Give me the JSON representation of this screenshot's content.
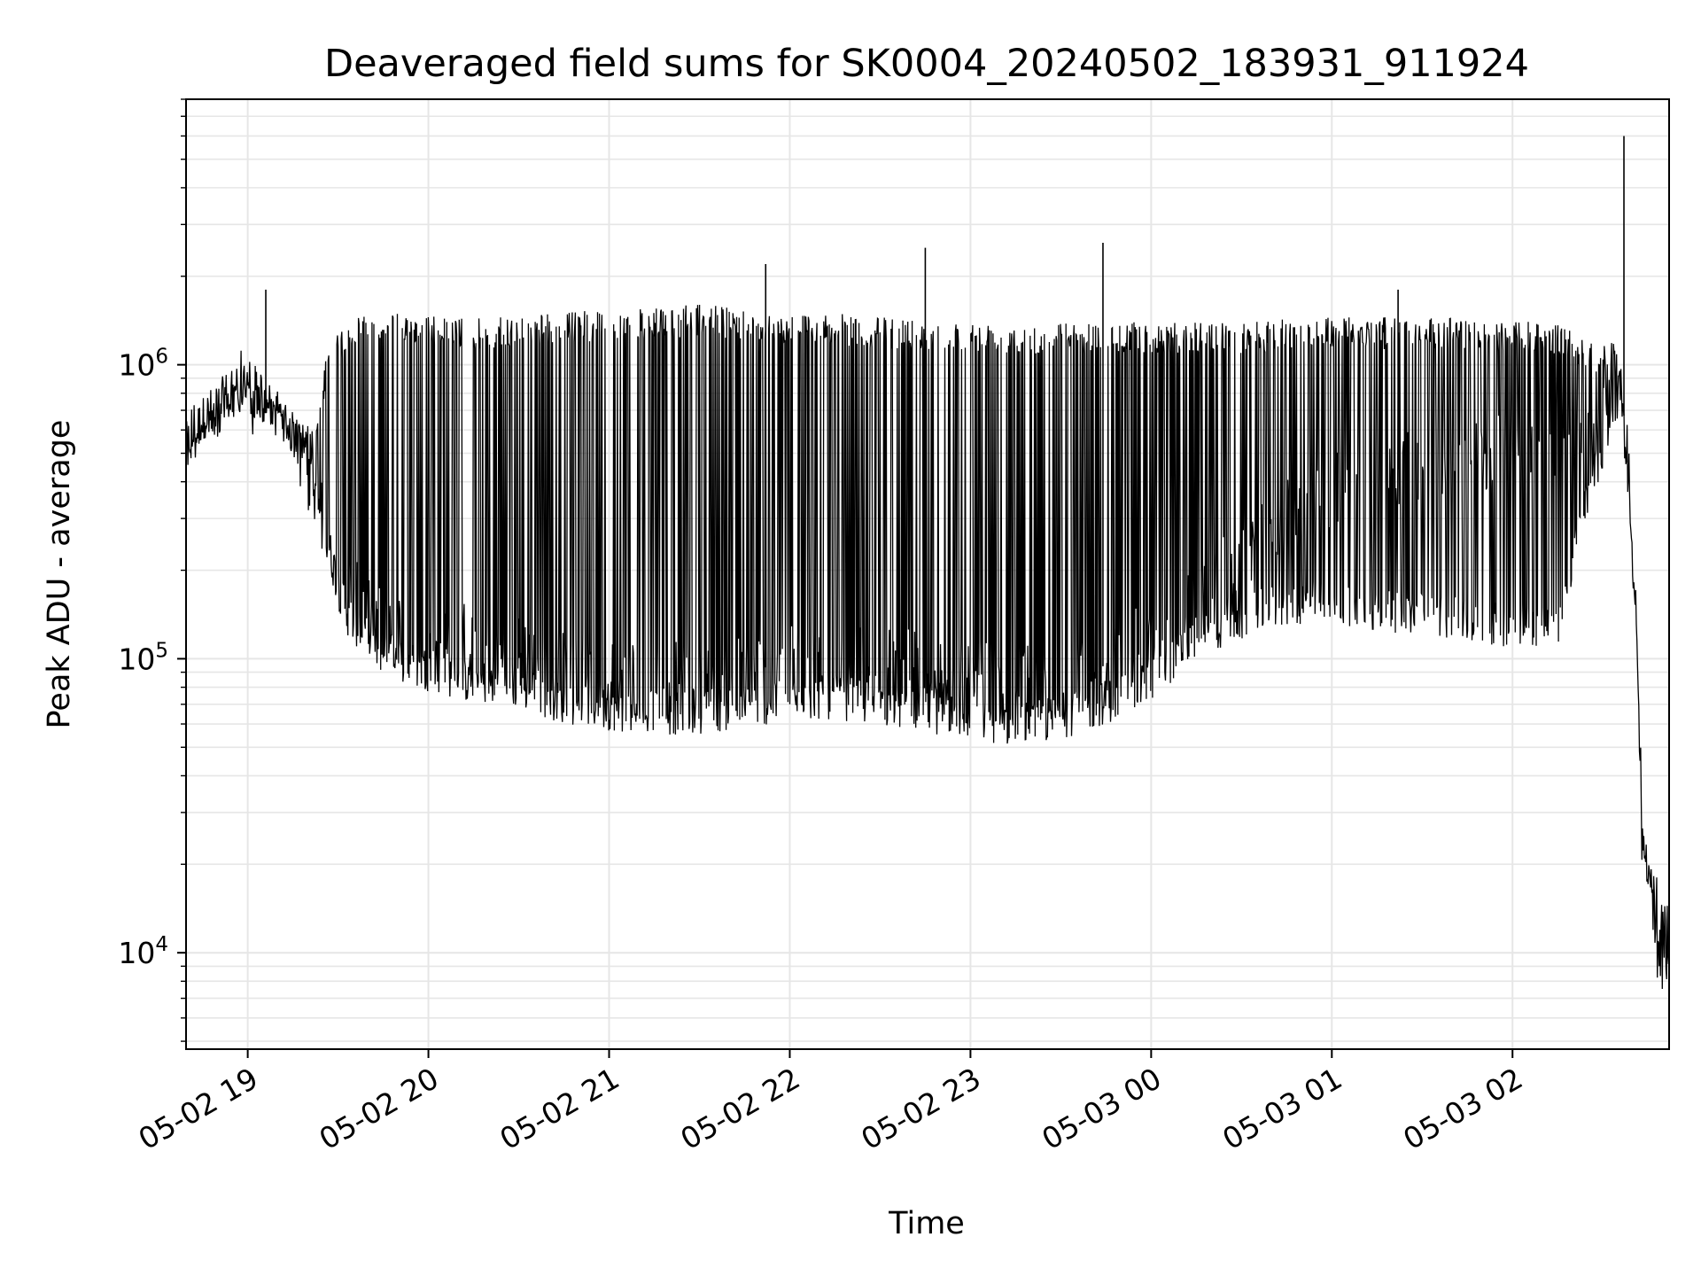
{
  "chart_data": {
    "type": "line",
    "title": "Deaveraged field sums for SK0004_20240502_183931_911924",
    "xlabel": "Time",
    "ylabel": "Peak ADU - average",
    "yscale": "log",
    "ylim": [
      4700,
      8000000
    ],
    "xlim": [
      "2024-05-02 18:39:31",
      "2024-05-03 02:52:00"
    ],
    "grid": true,
    "line_color": "#000000",
    "grid_color": "#e6e6e6",
    "x_ticks": [
      {
        "t": "2024-05-02 19:00",
        "label": "05-02 19"
      },
      {
        "t": "2024-05-02 20:00",
        "label": "05-02 20"
      },
      {
        "t": "2024-05-02 21:00",
        "label": "05-02 21"
      },
      {
        "t": "2024-05-02 22:00",
        "label": "05-02 22"
      },
      {
        "t": "2024-05-02 23:00",
        "label": "05-02 23"
      },
      {
        "t": "2024-05-03 00:00",
        "label": "05-03 00"
      },
      {
        "t": "2024-05-03 01:00",
        "label": "05-03 01"
      },
      {
        "t": "2024-05-03 02:00",
        "label": "05-03 02"
      }
    ],
    "y_ticks": [
      {
        "value": 10000,
        "base": "10",
        "exp": "4"
      },
      {
        "value": 100000,
        "base": "10",
        "exp": "5"
      },
      {
        "value": 1000000,
        "base": "10",
        "exp": "6"
      }
    ],
    "series": [
      {
        "x": [
          "2024-05-02 18:39:31",
          "2024-05-02 18:45",
          "2024-05-02 18:52",
          "2024-05-02 18:58",
          "2024-05-02 19:05",
          "2024-05-02 19:12",
          "2024-05-02 19:18",
          "2024-05-02 19:22",
          "2024-05-02 19:27",
          "2024-05-02 19:30",
          "2024-05-02 19:33",
          "2024-05-02 19:36",
          "2024-05-02 19:40",
          "2024-05-02 19:48",
          "2024-05-02 19:55",
          "2024-05-02 20:05",
          "2024-05-02 20:15",
          "2024-05-02 20:25",
          "2024-05-02 20:35",
          "2024-05-02 20:45",
          "2024-05-02 20:55",
          "2024-05-02 21:05",
          "2024-05-02 21:15",
          "2024-05-02 21:25",
          "2024-05-02 21:35",
          "2024-05-02 21:45",
          "2024-05-02 21:55",
          "2024-05-02 22:05",
          "2024-05-02 22:15",
          "2024-05-02 22:25",
          "2024-05-02 22:35",
          "2024-05-02 22:45",
          "2024-05-02 22:55",
          "2024-05-02 23:05",
          "2024-05-02 23:15",
          "2024-05-02 23:25",
          "2024-05-02 23:35",
          "2024-05-02 23:45",
          "2024-05-02 23:55",
          "2024-05-03 00:05",
          "2024-05-03 00:15",
          "2024-05-03 00:25",
          "2024-05-03 00:35",
          "2024-05-03 00:45",
          "2024-05-03 00:55",
          "2024-05-03 01:05",
          "2024-05-03 01:15",
          "2024-05-03 01:25",
          "2024-05-03 01:35",
          "2024-05-03 01:45",
          "2024-05-03 01:55",
          "2024-05-03 02:05",
          "2024-05-03 02:15",
          "2024-05-03 02:25",
          "2024-05-03 02:34",
          "2024-05-03 02:36",
          "2024-05-03 02:38",
          "2024-05-03 02:41",
          "2024-05-03 02:43",
          "2024-05-03 02:45",
          "2024-05-03 02:48",
          "2024-05-03 02:50",
          "2024-05-03 02:52"
        ],
        "y": [
          550000,
          620000,
          700000,
          850000,
          700000,
          600000,
          480000,
          360000,
          250000,
          200000,
          180000,
          160000,
          140000,
          130000,
          125000,
          120000,
          115000,
          110000,
          100000,
          95000,
          90000,
          88000,
          85000,
          85000,
          88000,
          90000,
          95000,
          100000,
          100000,
          98000,
          95000,
          92000,
          90000,
          88000,
          85000,
          85000,
          88000,
          95000,
          110000,
          130000,
          160000,
          200000,
          250000,
          300000,
          350000,
          400000,
          420000,
          450000,
          460000,
          480000,
          500000,
          520000,
          540000,
          560000,
          1100000,
          900000,
          500000,
          150000,
          30000,
          18000,
          10000,
          9000,
          12000
        ],
        "env_high": [
          560000,
          650000,
          750000,
          900000,
          800000,
          700000,
          650000,
          600000,
          1200000,
          1300000,
          1400000,
          1500000,
          1500000,
          1500000,
          1500000,
          1450000,
          1450000,
          1450000,
          1500000,
          1500000,
          1550000,
          1550000,
          1550000,
          1600000,
          1600000,
          1550000,
          1500000,
          1500000,
          1500000,
          1450000,
          1450000,
          1450000,
          1400000,
          1400000,
          1400000,
          1400000,
          1400000,
          1400000,
          1400000,
          1400000,
          1400000,
          1400000,
          1400000,
          1450000,
          1450000,
          1500000,
          1450000,
          1450000,
          1450000,
          1450000,
          1400000,
          1400000,
          1400000,
          1200000,
          1200000,
          900000,
          500000,
          150000,
          30000,
          22000,
          18000,
          15000,
          14000
        ],
        "env_low": [
          450000,
          550000,
          650000,
          800000,
          650000,
          560000,
          420000,
          300000,
          200000,
          150000,
          120000,
          110000,
          95000,
          85000,
          80000,
          75000,
          70000,
          70000,
          65000,
          60000,
          58000,
          56000,
          55000,
          55000,
          56000,
          58000,
          60000,
          62000,
          62000,
          60000,
          58000,
          56000,
          54000,
          52000,
          50000,
          52000,
          55000,
          60000,
          65000,
          80000,
          100000,
          110000,
          120000,
          130000,
          130000,
          130000,
          120000,
          120000,
          120000,
          110000,
          110000,
          110000,
          110000,
          300000,
          600000,
          700000,
          400000,
          120000,
          20000,
          12000,
          8000,
          7000,
          9000
        ]
      }
    ],
    "spikes": [
      {
        "t": "2024-05-02 19:06",
        "y": 1800000
      },
      {
        "t": "2024-05-02 21:52",
        "y": 2200000
      },
      {
        "t": "2024-05-02 22:45",
        "y": 2500000
      },
      {
        "t": "2024-05-02 23:44",
        "y": 2600000
      },
      {
        "t": "2024-05-03 01:22",
        "y": 1800000
      },
      {
        "t": "2024-05-03 02:37",
        "y": 6000000
      }
    ]
  }
}
